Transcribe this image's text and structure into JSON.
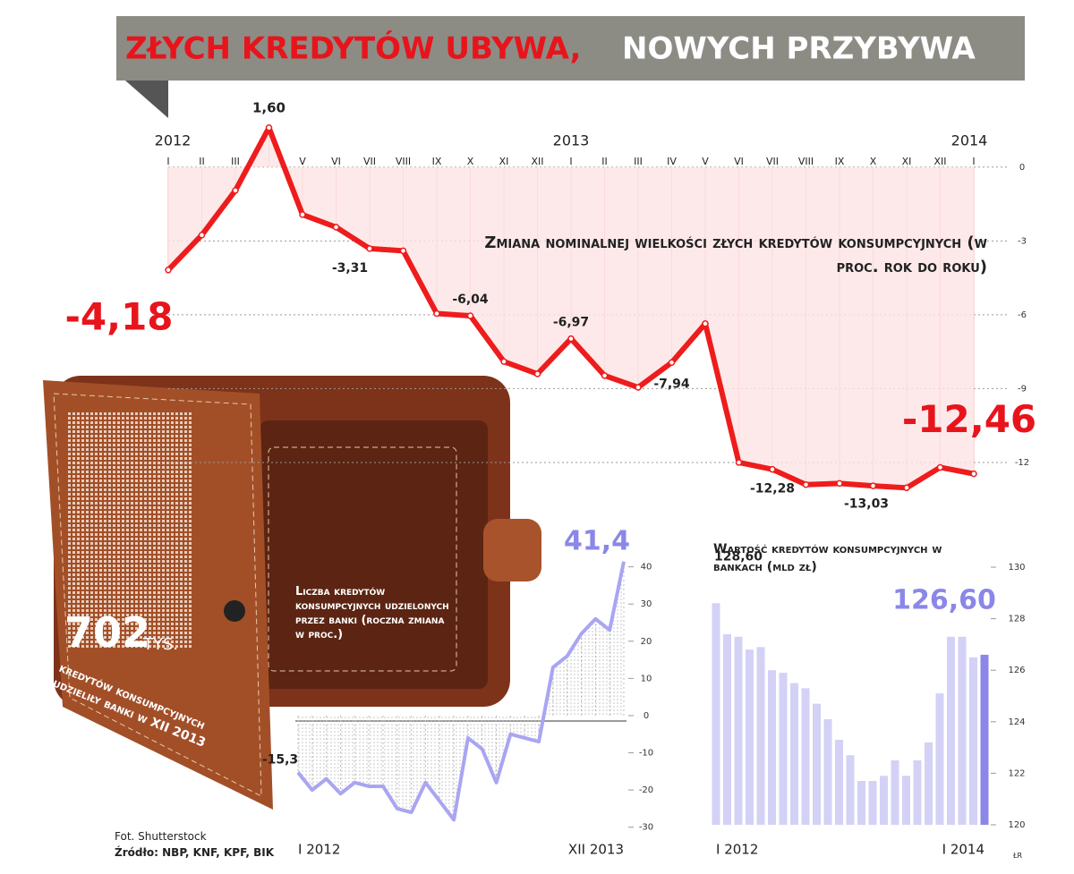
{
  "header": {
    "title_red": "ZŁYCH KREDYTÓW UBYWA,",
    "title_white": "NOWYCH PRZYBYWA"
  },
  "wallet": {
    "number": "702",
    "unit": "TYS.",
    "text": "kredytów konsumpcyjnych udzieliły banki w XII 2013"
  },
  "footer": {
    "photo": "Fot. Shutterstock",
    "source": "Źródło: NBP, KNF, KPF, BIK",
    "credit": "ŁR"
  },
  "chart_data": [
    {
      "type": "line",
      "title": "Zmiana nominalnej wielkości złych kredytów konsumpcyjnych (w proc. rok do roku)",
      "years": [
        "2012",
        "2013",
        "2014"
      ],
      "categories": [
        "I",
        "II",
        "III",
        null,
        "V",
        "VI",
        "VII",
        "VIII",
        "IX",
        "X",
        "XI",
        "XII",
        "I",
        "II",
        "III",
        "IV",
        "V",
        "VI",
        "VII",
        "VIII",
        "IX",
        "X",
        "XI",
        "XII",
        "I"
      ],
      "values": [
        -4.18,
        -2.76,
        -0.95,
        1.6,
        -1.93,
        -2.44,
        -3.31,
        -3.4,
        -5.95,
        -6.04,
        -7.9,
        -8.4,
        -6.97,
        -8.47,
        -8.95,
        -7.94,
        -6.36,
        -12.0,
        -12.28,
        -12.9,
        -12.85,
        -12.95,
        -13.03,
        -12.2,
        -12.46
      ],
      "value_labels": [
        "-4,18",
        null,
        null,
        "1,60",
        null,
        null,
        "-3,31",
        null,
        null,
        "-6,04",
        null,
        null,
        "-6,97",
        null,
        null,
        "-7,94",
        null,
        null,
        "-12,28",
        null,
        null,
        null,
        "-13,03",
        null,
        "-12,46"
      ],
      "color": "#ee1c1c",
      "ylim": [
        -14,
        2.5
      ],
      "yticks": [
        0,
        -3,
        -6,
        -9,
        -12
      ],
      "grid": true
    },
    {
      "type": "line",
      "title": "Liczba kredytów konsumpcyjnych udzielonych przez banki (roczna zmiana w proc.)",
      "categories": [
        "I 2012",
        null,
        null,
        null,
        null,
        null,
        null,
        null,
        null,
        null,
        null,
        null,
        null,
        null,
        null,
        null,
        null,
        null,
        null,
        null,
        null,
        null,
        null,
        "XII 2013"
      ],
      "values": [
        -15.3,
        -20,
        -17,
        -21,
        -18,
        -19,
        -19,
        -25,
        -26,
        -18,
        -23,
        -28,
        -6,
        -9,
        -18,
        -5,
        -6,
        -7,
        13,
        16,
        22,
        26,
        23,
        41.4
      ],
      "value_labels": [
        "-15,3",
        null,
        null,
        null,
        null,
        null,
        null,
        null,
        null,
        null,
        null,
        null,
        null,
        null,
        null,
        null,
        null,
        null,
        null,
        null,
        null,
        null,
        null,
        "41,4"
      ],
      "color": "#a9a5f2",
      "ylim": [
        -32,
        44
      ],
      "yticks": [
        40,
        30,
        20,
        10,
        0,
        -10,
        -20,
        -30
      ],
      "grid": false
    },
    {
      "type": "bar",
      "title": "Wartość kredytów konsumpcyjnych w bankach (mld zł)",
      "categories": [
        "I 2012",
        null,
        null,
        null,
        null,
        null,
        null,
        null,
        null,
        null,
        null,
        null,
        null,
        null,
        null,
        null,
        null,
        null,
        null,
        null,
        null,
        null,
        null,
        null,
        "I 2014"
      ],
      "values": [
        128.6,
        127.4,
        127.3,
        126.8,
        126.9,
        126.0,
        125.9,
        125.5,
        125.3,
        124.7,
        124.1,
        123.3,
        122.7,
        121.7,
        121.7,
        121.9,
        122.5,
        121.9,
        122.5,
        123.2,
        125.1,
        127.3,
        127.3,
        126.5,
        126.6
      ],
      "value_labels": [
        "128,60",
        null,
        null,
        null,
        null,
        null,
        null,
        null,
        null,
        null,
        null,
        null,
        null,
        null,
        null,
        null,
        null,
        null,
        null,
        null,
        null,
        null,
        null,
        null,
        "126,60"
      ],
      "color": "#d3d1f6",
      "highlight_color": "#8b87e8",
      "ylim": [
        120,
        130
      ],
      "yticks": [
        130,
        128,
        126,
        124,
        122,
        120
      ],
      "grid": false
    }
  ]
}
